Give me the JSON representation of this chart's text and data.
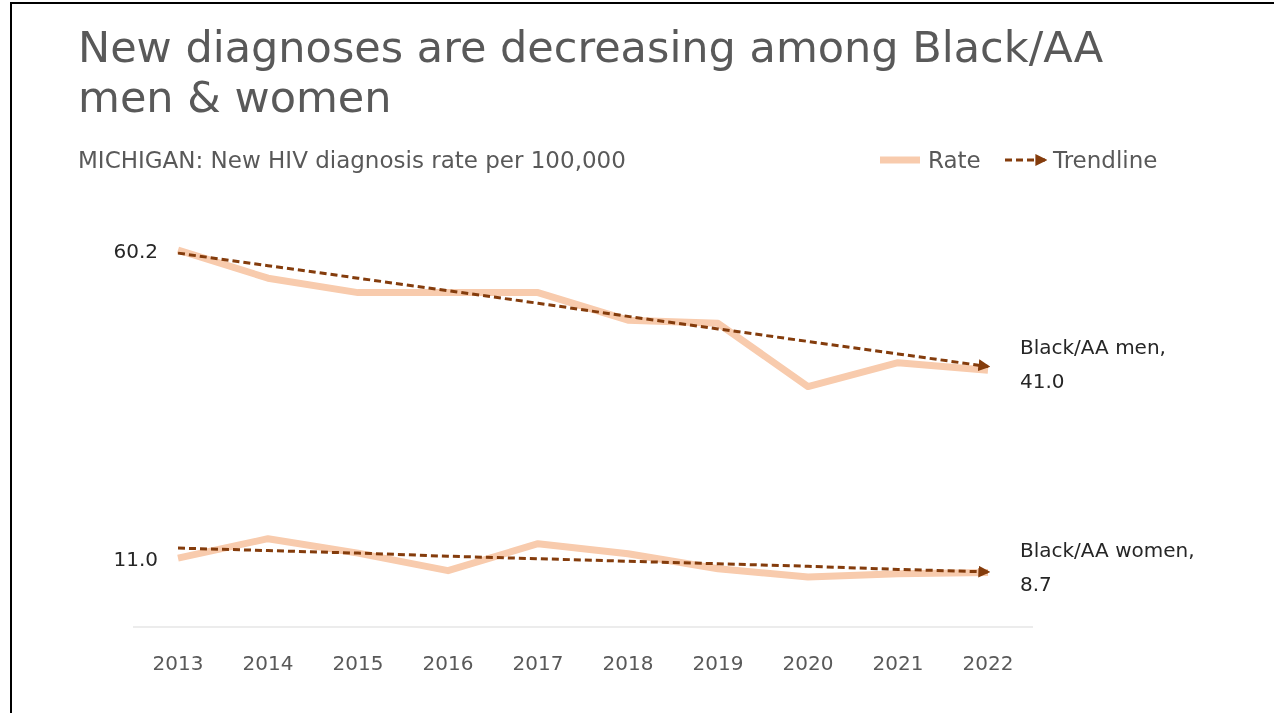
{
  "chart_data": {
    "type": "line",
    "title": "New diagnoses are decreasing among Black/AA men & women",
    "subtitle": "MICHIGAN: New HIV diagnosis rate per 100,000",
    "categories": [
      "2013",
      "2014",
      "2015",
      "2016",
      "2017",
      "2018",
      "2019",
      "2020",
      "2021",
      "2022"
    ],
    "tick_labels": "x",
    "legend": "top right",
    "grid": false,
    "series": [
      {
        "name": "Rate",
        "color": "#f8cbad",
        "values": [
          60.2,
          55.7,
          53.4,
          53.4,
          53.4,
          49.0,
          48.5,
          38.4,
          42.2,
          41.0
        ],
        "value_labels": [
          "60.2",
          null,
          null,
          null,
          null,
          null,
          null,
          null,
          null,
          "41.0"
        ]
      },
      {
        "color": "#f8cbad",
        "values": [
          11.0,
          14.1,
          11.8,
          9.0,
          13.3,
          11.7,
          9.3,
          8.0,
          8.5,
          8.7
        ],
        "value_labels": [
          "11.0",
          null,
          null,
          null,
          null,
          null,
          null,
          null,
          null,
          "8.7"
        ]
      },
      {
        "name": "Trendline",
        "color": "#843c0c",
        "line_style": "dashed",
        "values": [
          59.7,
          57.7,
          55.7,
          53.7,
          51.7,
          49.6,
          47.6,
          45.6,
          43.6,
          41.6
        ]
      },
      {
        "color": "#843c0c",
        "line_style": "dashed",
        "values": [
          12.6,
          12.2,
          11.8,
          11.3,
          10.9,
          10.5,
          10.1,
          9.7,
          9.2,
          8.8
        ]
      }
    ],
    "annotations": [
      {
        "text": "Black/AA men,",
        "x": "2022",
        "y": 41.0
      },
      {
        "text": "Black/AA women,",
        "x": "2022",
        "y": 8.7
      }
    ]
  }
}
